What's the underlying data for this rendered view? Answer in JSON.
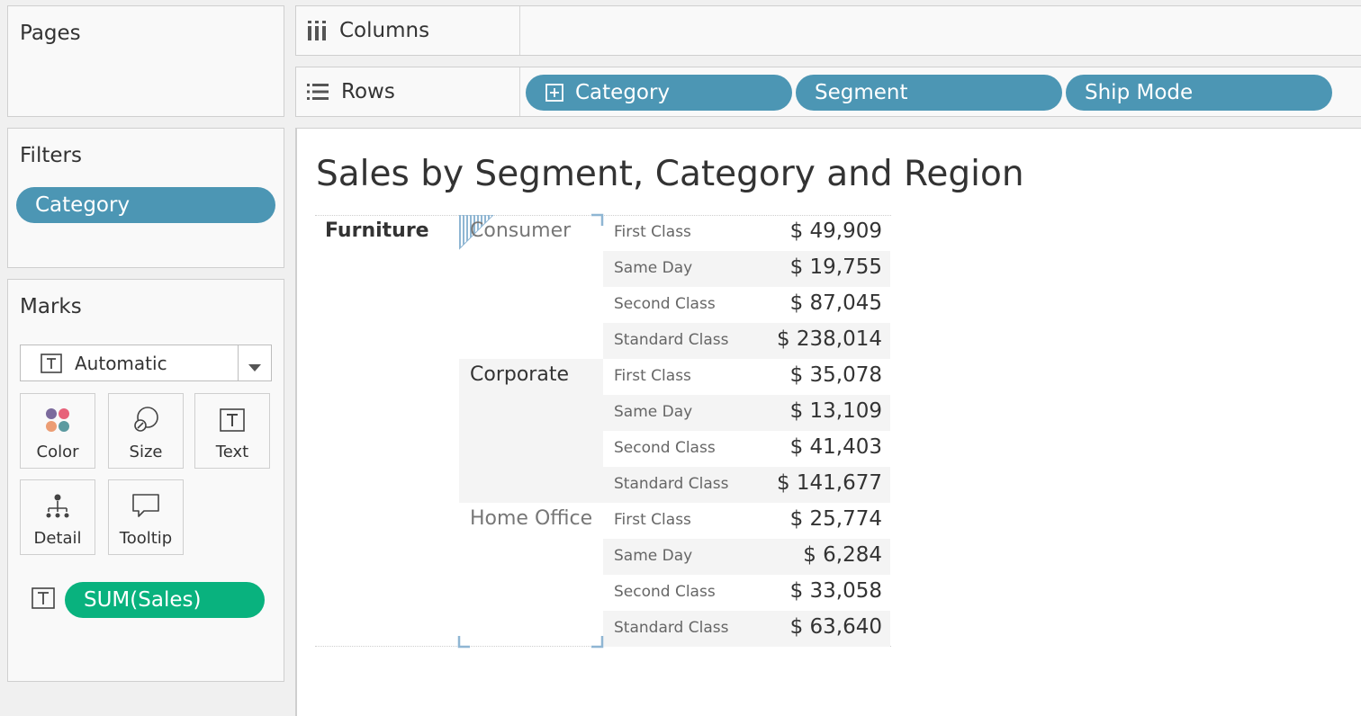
{
  "pages": {
    "title": "Pages"
  },
  "filters": {
    "title": "Filters",
    "pills": [
      "Category"
    ]
  },
  "marks": {
    "title": "Marks",
    "mark_type": "Automatic",
    "cards": [
      "Color",
      "Size",
      "Text",
      "Detail",
      "Tooltip"
    ],
    "field_pill": "SUM(Sales)",
    "colors": {
      "pill": "#09b27e",
      "dots": [
        "#7b6a9c",
        "#e7627a",
        "#ec9d74",
        "#5b9aa0"
      ]
    }
  },
  "shelves": {
    "columns": {
      "label": "Columns",
      "pills": []
    },
    "rows": {
      "label": "Rows",
      "pills": [
        "Category",
        "Segment",
        "Ship Mode"
      ]
    }
  },
  "viz": {
    "title": "Sales by Segment, Category and Region",
    "category": "Furniture",
    "segments": [
      {
        "name": "Consumer",
        "rows": [
          {
            "ship_mode": "First Class",
            "sales": "$ 49,909"
          },
          {
            "ship_mode": "Same Day",
            "sales": "$ 19,755"
          },
          {
            "ship_mode": "Second Class",
            "sales": "$ 87,045"
          },
          {
            "ship_mode": "Standard Class",
            "sales": "$ 238,014"
          }
        ]
      },
      {
        "name": "Corporate",
        "rows": [
          {
            "ship_mode": "First Class",
            "sales": "$ 35,078"
          },
          {
            "ship_mode": "Same Day",
            "sales": "$ 13,109"
          },
          {
            "ship_mode": "Second Class",
            "sales": "$ 41,403"
          },
          {
            "ship_mode": "Standard Class",
            "sales": "$ 141,677"
          }
        ]
      },
      {
        "name": "Home Office",
        "rows": [
          {
            "ship_mode": "First Class",
            "sales": "$ 25,774"
          },
          {
            "ship_mode": "Same Day",
            "sales": "$ 6,284"
          },
          {
            "ship_mode": "Second Class",
            "sales": "$ 33,058"
          },
          {
            "ship_mode": "Standard Class",
            "sales": "$ 63,640"
          }
        ]
      }
    ],
    "colors": {
      "pill": "#4c96b4",
      "band": "#f4f4f4",
      "selection": "#8fb6d3"
    }
  }
}
